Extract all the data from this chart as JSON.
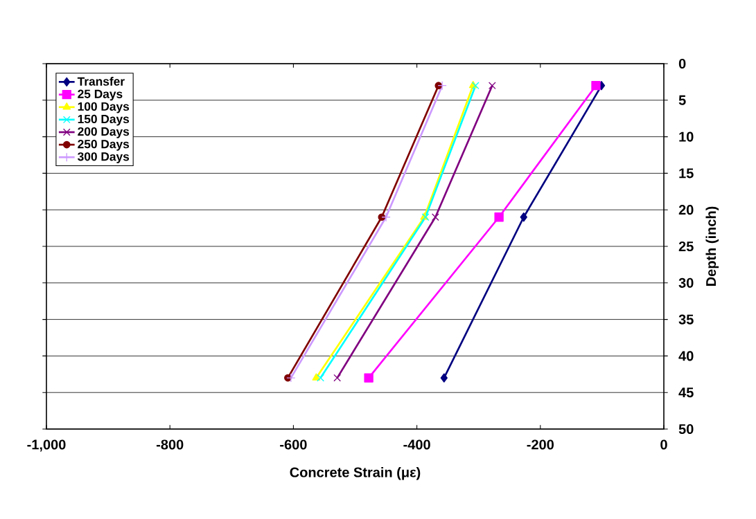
{
  "chart_data": {
    "type": "line",
    "xlabel": "Concrete Strain (με)",
    "ylabel": "Depth (inch)",
    "xlim": [
      -1000,
      0
    ],
    "ylim": [
      50,
      0
    ],
    "xticks": [
      {
        "value": -1000,
        "label": "-1,000"
      },
      -800,
      -600,
      -400,
      -200,
      0
    ],
    "yticks": [
      0,
      5,
      10,
      15,
      20,
      25,
      30,
      35,
      40,
      45,
      50
    ],
    "grid": "y",
    "legend": "top left",
    "series": [
      {
        "name": "Transfer",
        "color": "#000080",
        "marker": "diamond",
        "x": [
          -101,
          -227,
          -356
        ],
        "values": [
          3,
          21,
          43
        ]
      },
      {
        "name": "25 Days",
        "color": "#ff00ff",
        "marker": "square",
        "x": [
          -110,
          -267,
          -478
        ],
        "values": [
          3,
          21,
          43
        ]
      },
      {
        "name": "100 Days",
        "color": "#ffff00",
        "marker": "triangle",
        "x": [
          -309,
          -388,
          -563
        ],
        "values": [
          3,
          21,
          43
        ]
      },
      {
        "name": "150 Days",
        "color": "#00ffff",
        "marker": "cross",
        "x": [
          -305,
          -386,
          -556
        ],
        "values": [
          3,
          21,
          43
        ]
      },
      {
        "name": "200 Days",
        "color": "#800080",
        "marker": "cross",
        "x": [
          -278,
          -370,
          -529
        ],
        "values": [
          3,
          21,
          43
        ]
      },
      {
        "name": "250 Days",
        "color": "#800000",
        "marker": "circle",
        "x": [
          -365,
          -457,
          -609
        ],
        "values": [
          3,
          21,
          43
        ]
      },
      {
        "name": "300 Days",
        "color": "#cc99ff",
        "marker": "plus",
        "x": [
          -359,
          -450,
          -604
        ],
        "values": [
          3,
          21,
          43
        ]
      }
    ]
  }
}
